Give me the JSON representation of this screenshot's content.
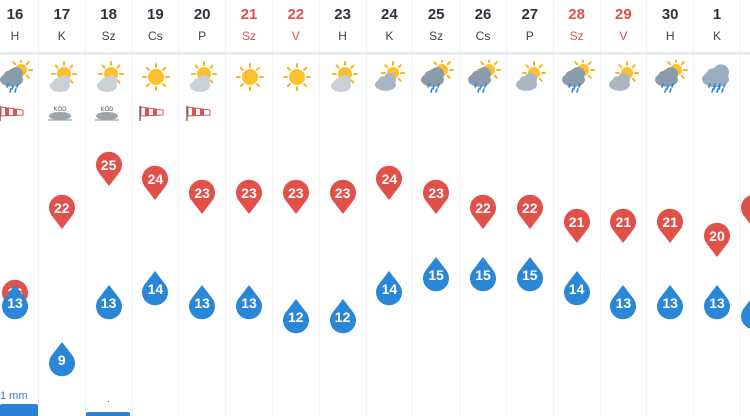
{
  "days": [
    {
      "num": "16",
      "name": "H",
      "weekend": false,
      "weather": "partly-cloudy-rain-icon",
      "wind": "windsock-icon",
      "max": "16",
      "min": "13"
    },
    {
      "num": "17",
      "name": "K",
      "weekend": false,
      "weather": "sun-cloud-icon",
      "wind": "fog-icon",
      "max": "22",
      "min": "9"
    },
    {
      "num": "18",
      "name": "Sz",
      "weekend": false,
      "weather": "sun-cloud-icon",
      "wind": "fog-icon",
      "max": "25",
      "min": "13"
    },
    {
      "num": "19",
      "name": "Cs",
      "weekend": false,
      "weather": "sun-icon",
      "wind": "windsock-icon",
      "max": "24",
      "min": "14"
    },
    {
      "num": "20",
      "name": "P",
      "weekend": false,
      "weather": "sun-cloud-icon",
      "wind": "windsock-icon",
      "max": "23",
      "min": "13"
    },
    {
      "num": "21",
      "name": "Sz",
      "weekend": true,
      "weather": "sun-icon",
      "wind": "",
      "max": "23",
      "min": "13"
    },
    {
      "num": "22",
      "name": "V",
      "weekend": true,
      "weather": "sun-icon",
      "wind": "",
      "max": "23",
      "min": "12"
    },
    {
      "num": "23",
      "name": "H",
      "weekend": false,
      "weather": "sun-cloud-icon",
      "wind": "",
      "max": "23",
      "min": "12"
    },
    {
      "num": "24",
      "name": "K",
      "weekend": false,
      "weather": "cloud-sun-icon",
      "wind": "",
      "max": "24",
      "min": "14"
    },
    {
      "num": "25",
      "name": "Sz",
      "weekend": false,
      "weather": "partly-cloudy-rain-icon",
      "wind": "",
      "max": "23",
      "min": "15"
    },
    {
      "num": "26",
      "name": "Cs",
      "weekend": false,
      "weather": "partly-cloudy-rain-icon",
      "wind": "",
      "max": "22",
      "min": "15"
    },
    {
      "num": "27",
      "name": "P",
      "weekend": false,
      "weather": "cloud-sun-icon",
      "wind": "",
      "max": "22",
      "min": "15"
    },
    {
      "num": "28",
      "name": "Sz",
      "weekend": true,
      "weather": "partly-cloudy-rain-icon",
      "wind": "",
      "max": "21",
      "min": "14"
    },
    {
      "num": "29",
      "name": "V",
      "weekend": true,
      "weather": "cloud-sun-icon",
      "wind": "",
      "max": "21",
      "min": "13"
    },
    {
      "num": "30",
      "name": "H",
      "weekend": false,
      "weather": "partly-cloudy-rain-icon",
      "wind": "",
      "max": "21",
      "min": "13"
    },
    {
      "num": "1",
      "name": "K",
      "weekend": false,
      "weather": "rain-cloud-icon",
      "wind": "",
      "max": "20",
      "min": "13"
    },
    {
      "num": "",
      "name": "",
      "weekend": false,
      "weather": "",
      "wind": "",
      "max": "",
      "min": ""
    }
  ],
  "fog_label": "KÖD",
  "precip_label": "1 mm",
  "precip_dot": ".",
  "colors": {
    "max": "#e2504a",
    "min": "#2a86d6",
    "weekend": "#e2504a",
    "text": "#2b3340"
  }
}
